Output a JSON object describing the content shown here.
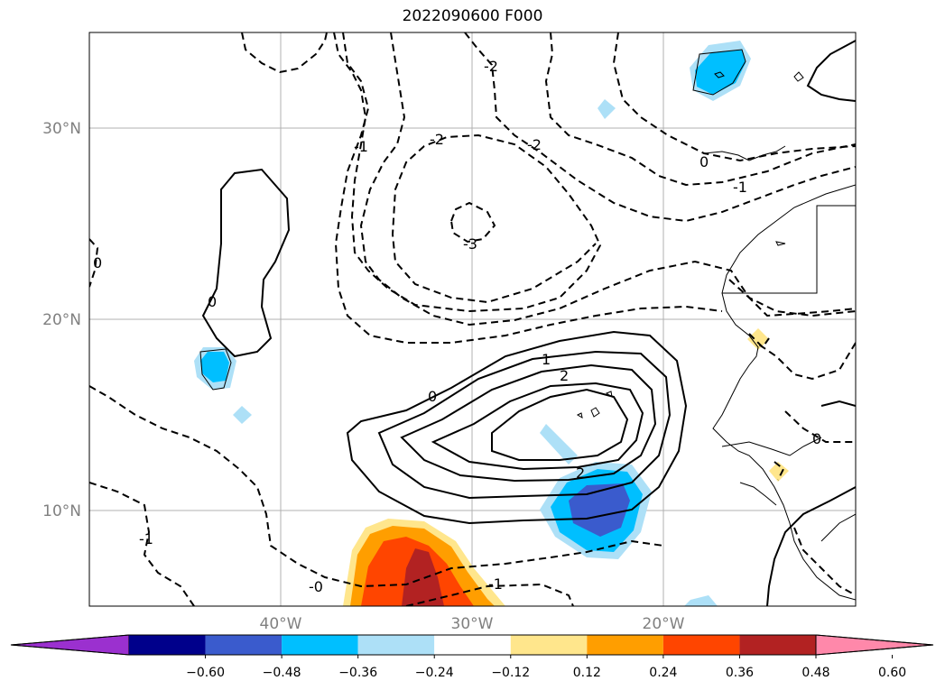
{
  "title": "2022090600 F000",
  "map": {
    "lat_labels": [
      "30°N",
      "20°N",
      "10°N"
    ],
    "lon_labels": [
      "40°W",
      "30°W",
      "20°W"
    ],
    "contour_labels": [
      "-2",
      "-1",
      "-2",
      "-3",
      "-2",
      "-1",
      "0",
      "0",
      "0",
      "1",
      "2",
      "2",
      "0",
      "-0",
      "-1",
      "-1",
      "0"
    ]
  },
  "colorbar": {
    "tick_labels": [
      "−0.60",
      "−0.48",
      "−0.36",
      "−0.24",
      "−0.12",
      "0.12",
      "0.24",
      "0.36",
      "0.48",
      "0.60"
    ],
    "colors": [
      "#9b30cf",
      "#00008b",
      "#3a5bcd",
      "#00bfff",
      "#ade0f7",
      "#ffffff",
      "#ffe68c",
      "#ff9e00",
      "#ff4500",
      "#b22222",
      "#ff88aa"
    ]
  }
}
